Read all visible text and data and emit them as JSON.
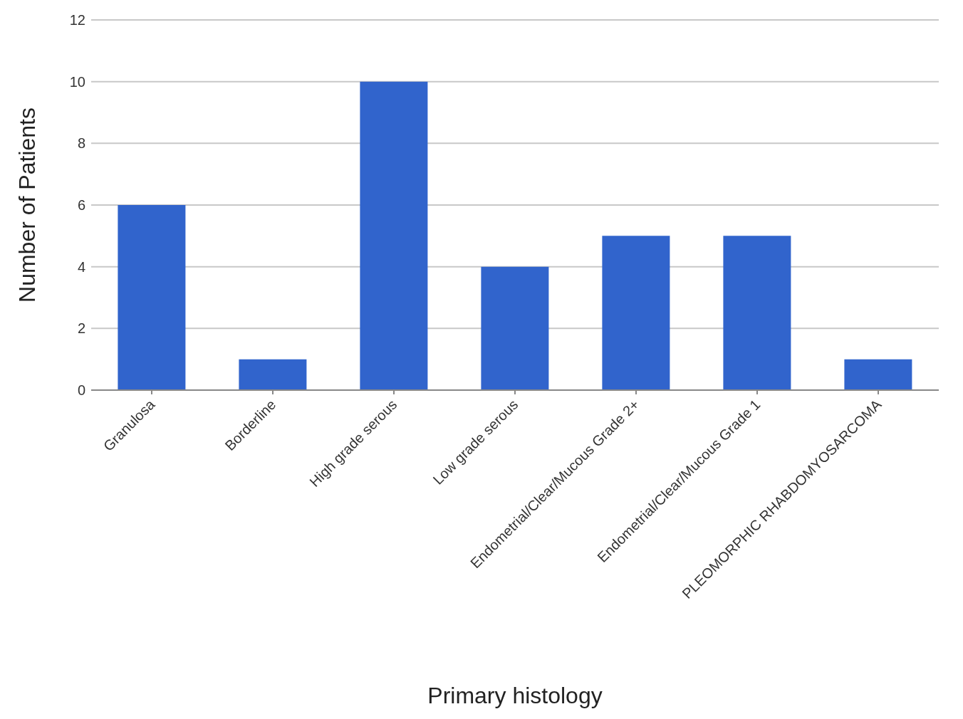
{
  "chart_data": {
    "type": "bar",
    "xlabel": "Primary histology",
    "ylabel": "Number of Patients",
    "categories": [
      "Granulosa",
      "Borderline",
      "High grade serous",
      "Low grade serous",
      "Endometrial/Clear/Mucous Grade 2+",
      "Endometrial/Clear/Mucous Grade 1",
      "PLEOMORPHIC RHABDOMYOSARCOMA"
    ],
    "values": [
      6,
      1,
      10,
      4,
      5,
      5,
      1
    ],
    "color": "#3164cc",
    "ylim": [
      0,
      12
    ],
    "yticks": [
      0,
      2,
      4,
      6,
      8,
      10,
      12
    ],
    "grid": "y"
  }
}
